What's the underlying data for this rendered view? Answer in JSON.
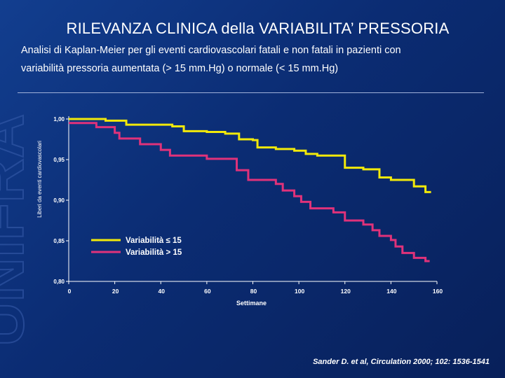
{
  "slide": {
    "title": "RILEVANZA CLINICA della VARIABILITA’ PRESSORIA",
    "subtitle_line1": "Analisi di Kaplan-Meier per gli eventi cardiovascolari fatali  e non fatali in pazienti con",
    "subtitle_line2": "variabilità pressoria aumentata (> 15 mm.Hg) o normale (< 15 mm.Hg)",
    "citation": "Sander D. et al, Circulation 2000; 102: 1536-1541",
    "watermark_text": "UNIFRA"
  },
  "colors": {
    "background": "#0b2c73",
    "low_variability": "#f2e90a",
    "high_variability": "#e0327a",
    "axis": "#ffffff"
  },
  "chart_data": {
    "type": "line",
    "step": true,
    "title": "",
    "xlabel": "Settimane",
    "ylabel": "Liberi da eventi cardiovascolari",
    "xlim": [
      0,
      160
    ],
    "ylim": [
      0.8,
      1.0
    ],
    "xticks": [
      0,
      20,
      40,
      60,
      80,
      100,
      120,
      140,
      160
    ],
    "xtick_labels": [
      "0",
      "20",
      "40",
      "60",
      "80",
      "100",
      "120",
      "140",
      "160"
    ],
    "yticks": [
      0.8,
      0.85,
      0.9,
      0.95,
      1.0
    ],
    "ytick_labels": [
      "0,80",
      "0,85",
      "0,90",
      "0,95",
      "1,00"
    ],
    "legend_position": "lower-left",
    "series": [
      {
        "name": "Variabilità ≤ 15",
        "color_key": "low_variability",
        "x": [
          0,
          16,
          25,
          45,
          50,
          60,
          68,
          74,
          80,
          82,
          90,
          98,
          103,
          108,
          120,
          128,
          135,
          140,
          150,
          155
        ],
        "y": [
          1.0,
          0.998,
          0.993,
          0.991,
          0.985,
          0.984,
          0.982,
          0.975,
          0.974,
          0.965,
          0.963,
          0.961,
          0.957,
          0.955,
          0.94,
          0.938,
          0.928,
          0.925,
          0.917,
          0.91
        ]
      },
      {
        "name": "Variabilità > 15",
        "color_key": "high_variability",
        "x": [
          0,
          12,
          20,
          22,
          31,
          40,
          44,
          60,
          73,
          78,
          90,
          93,
          98,
          101,
          105,
          115,
          120,
          128,
          132,
          135,
          140,
          142,
          145,
          150,
          155
        ],
        "y": [
          0.995,
          0.99,
          0.983,
          0.976,
          0.969,
          0.962,
          0.955,
          0.951,
          0.937,
          0.925,
          0.92,
          0.912,
          0.905,
          0.898,
          0.89,
          0.885,
          0.875,
          0.87,
          0.863,
          0.856,
          0.851,
          0.843,
          0.835,
          0.829,
          0.825
        ]
      }
    ]
  }
}
